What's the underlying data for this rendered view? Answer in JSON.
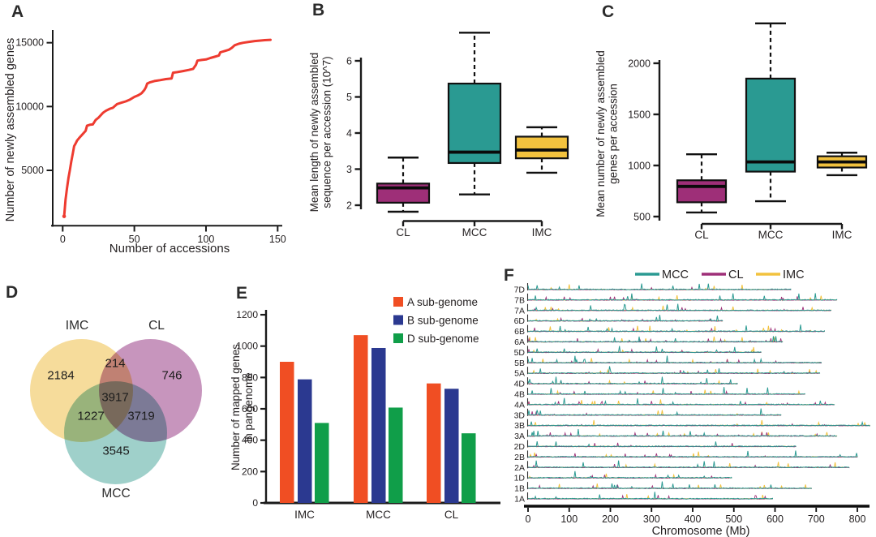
{
  "colors": {
    "red": "#ee3b30",
    "teal": "#2a9a92",
    "purple": "#9e2f78",
    "yellow": "#f2c23e",
    "venn_yellow": "#f6dc9b",
    "venn_pink": "#c795bd",
    "venn_teal": "#9fd0ca",
    "bar_orange": "#f04e23",
    "bar_blue": "#2b3990",
    "bar_green": "#109e49",
    "axis": "#1a1a1a",
    "text": "#231f20"
  },
  "chart_data": [
    {
      "id": "A",
      "panel_label": "A",
      "type": "line",
      "xlabel": "Number of accessions",
      "ylabel": "Number of newly assembled genes",
      "xlim": [
        0,
        150
      ],
      "ylim": [
        500,
        16000
      ],
      "xticks": [
        0,
        50,
        100,
        150
      ],
      "yticks": [
        5000,
        10000,
        15000
      ],
      "grid": false,
      "series": [
        {
          "name": "newly assembled genes",
          "color_key": "red",
          "points": [
            [
              1,
              1400
            ],
            [
              2,
              2700
            ],
            [
              3,
              3600
            ],
            [
              4,
              4400
            ],
            [
              5,
              5000
            ],
            [
              6,
              5700
            ],
            [
              7,
              6300
            ],
            [
              8,
              6900
            ],
            [
              9,
              7100
            ],
            [
              10,
              7330
            ],
            [
              12,
              7600
            ],
            [
              14,
              7850
            ],
            [
              16,
              8100
            ],
            [
              17,
              8500
            ],
            [
              19,
              8570
            ],
            [
              21,
              8600
            ],
            [
              23,
              8950
            ],
            [
              25,
              9130
            ],
            [
              28,
              9500
            ],
            [
              30,
              9660
            ],
            [
              33,
              9830
            ],
            [
              35,
              9900
            ],
            [
              38,
              10190
            ],
            [
              41,
              10300
            ],
            [
              44,
              10400
            ],
            [
              47,
              10550
            ],
            [
              50,
              10750
            ],
            [
              53,
              10900
            ],
            [
              55,
              11040
            ],
            [
              57,
              11300
            ],
            [
              58,
              11500
            ],
            [
              59,
              11800
            ],
            [
              61,
              11900
            ],
            [
              64,
              12000
            ],
            [
              68,
              12070
            ],
            [
              72,
              12150
            ],
            [
              76,
              12200
            ],
            [
              77,
              12650
            ],
            [
              80,
              12700
            ],
            [
              84,
              12780
            ],
            [
              88,
              12870
            ],
            [
              91,
              12950
            ],
            [
              93,
              13270
            ],
            [
              94,
              13600
            ],
            [
              97,
              13650
            ],
            [
              100,
              13690
            ],
            [
              103,
              13800
            ],
            [
              106,
              13900
            ],
            [
              109,
              14000
            ],
            [
              110,
              14250
            ],
            [
              113,
              14350
            ],
            [
              116,
              14450
            ],
            [
              118,
              14600
            ],
            [
              120,
              14800
            ],
            [
              123,
              14920
            ],
            [
              126,
              15000
            ],
            [
              130,
              15070
            ],
            [
              134,
              15130
            ],
            [
              138,
              15170
            ],
            [
              141,
              15200
            ],
            [
              145,
              15230
            ]
          ]
        }
      ]
    },
    {
      "id": "B",
      "panel_label": "B",
      "type": "box",
      "ylabel_lines": [
        "Mean length of  newly assembled",
        "sequence per accession  (10^7)"
      ],
      "yticks": [
        2,
        3,
        4,
        5,
        6
      ],
      "ylim": [
        1.8,
        6.9
      ],
      "categories": [
        "CL",
        "MCC",
        "IMC"
      ],
      "boxes": [
        {
          "category": "CL",
          "color_key": "purple",
          "whisker_low": 1.82,
          "q1": 2.07,
          "median": 2.48,
          "q3": 2.6,
          "whisker_high": 3.32
        },
        {
          "category": "MCC",
          "color_key": "teal",
          "whisker_low": 2.3,
          "q1": 3.17,
          "median": 3.47,
          "q3": 5.37,
          "whisker_high": 6.78
        },
        {
          "category": "IMC",
          "color_key": "yellow",
          "whisker_low": 2.9,
          "q1": 3.3,
          "median": 3.53,
          "q3": 3.9,
          "whisker_high": 4.16
        }
      ]
    },
    {
      "id": "C",
      "panel_label": "C",
      "type": "box",
      "ylabel_lines": [
        "Mean number of  newly assembled",
        "genes per accession"
      ],
      "yticks": [
        500,
        1000,
        1500,
        2000
      ],
      "ylim": [
        450,
        2450
      ],
      "categories": [
        "CL",
        "MCC",
        "IMC"
      ],
      "boxes": [
        {
          "category": "CL",
          "color_key": "purple",
          "whisker_low": 540,
          "q1": 640,
          "median": 795,
          "q3": 855,
          "whisker_high": 1110
        },
        {
          "category": "MCC",
          "color_key": "teal",
          "whisker_low": 650,
          "q1": 940,
          "median": 1035,
          "q3": 1850,
          "whisker_high": 2390
        },
        {
          "category": "IMC",
          "color_key": "yellow",
          "whisker_low": 905,
          "q1": 980,
          "median": 1035,
          "q3": 1090,
          "whisker_high": 1125
        }
      ]
    },
    {
      "id": "D",
      "panel_label": "D",
      "type": "venn",
      "sets": [
        {
          "name": "IMC",
          "color_key": "venn_yellow"
        },
        {
          "name": "CL",
          "color_key": "venn_pink"
        },
        {
          "name": "MCC",
          "color_key": "venn_teal"
        }
      ],
      "regions": {
        "IMC_only": "2184",
        "CL_only": "746",
        "MCC_only": "3545",
        "IMC_CL": "214",
        "IMC_MCC": "1227",
        "CL_MCC": "3719",
        "IMC_CL_MCC": "3917"
      }
    },
    {
      "id": "E",
      "panel_label": "E",
      "type": "bar",
      "ylabel_lines": [
        "Number of mapped genes",
        "in pangenome"
      ],
      "categories": [
        "IMC",
        "MCC",
        "CL"
      ],
      "yticks": [
        0,
        200,
        400,
        600,
        800,
        1000,
        1200
      ],
      "ylim": [
        0,
        1200
      ],
      "legend_position": "top-right",
      "series": [
        {
          "name": "A sub-genome",
          "color_key": "bar_orange",
          "values": [
            900,
            1070,
            762
          ]
        },
        {
          "name": "B sub-genome",
          "color_key": "bar_blue",
          "values": [
            788,
            988,
            728
          ]
        },
        {
          "name": "D sub-genome",
          "color_key": "bar_green",
          "values": [
            510,
            608,
            444
          ]
        }
      ]
    },
    {
      "id": "F",
      "panel_label": "F",
      "type": "tracks",
      "xlabel": "Chromosome (Mb)",
      "xticks": [
        0,
        100,
        200,
        300,
        400,
        500,
        600,
        700,
        800
      ],
      "legend": [
        {
          "name": "MCC",
          "color_key": "teal"
        },
        {
          "name": "CL",
          "color_key": "purple"
        },
        {
          "name": "IMC",
          "color_key": "yellow"
        }
      ],
      "tracks": [
        {
          "name": "7D",
          "length_mb": 638
        },
        {
          "name": "7B",
          "length_mb": 750
        },
        {
          "name": "7A",
          "length_mb": 736
        },
        {
          "name": "6D",
          "length_mb": 473
        },
        {
          "name": "6B",
          "length_mb": 720
        },
        {
          "name": "6A",
          "length_mb": 618
        },
        {
          "name": "5D",
          "length_mb": 566
        },
        {
          "name": "5B",
          "length_mb": 713
        },
        {
          "name": "5A",
          "length_mb": 709
        },
        {
          "name": "4D",
          "length_mb": 509
        },
        {
          "name": "4B",
          "length_mb": 673
        },
        {
          "name": "4A",
          "length_mb": 744
        },
        {
          "name": "3D",
          "length_mb": 615
        },
        {
          "name": "3B",
          "length_mb": 830
        },
        {
          "name": "3A",
          "length_mb": 750
        },
        {
          "name": "2D",
          "length_mb": 651
        },
        {
          "name": "2B",
          "length_mb": 800
        },
        {
          "name": "2A",
          "length_mb": 780
        },
        {
          "name": "1D",
          "length_mb": 495
        },
        {
          "name": "1B",
          "length_mb": 689
        },
        {
          "name": "1A",
          "length_mb": 594
        }
      ]
    }
  ]
}
